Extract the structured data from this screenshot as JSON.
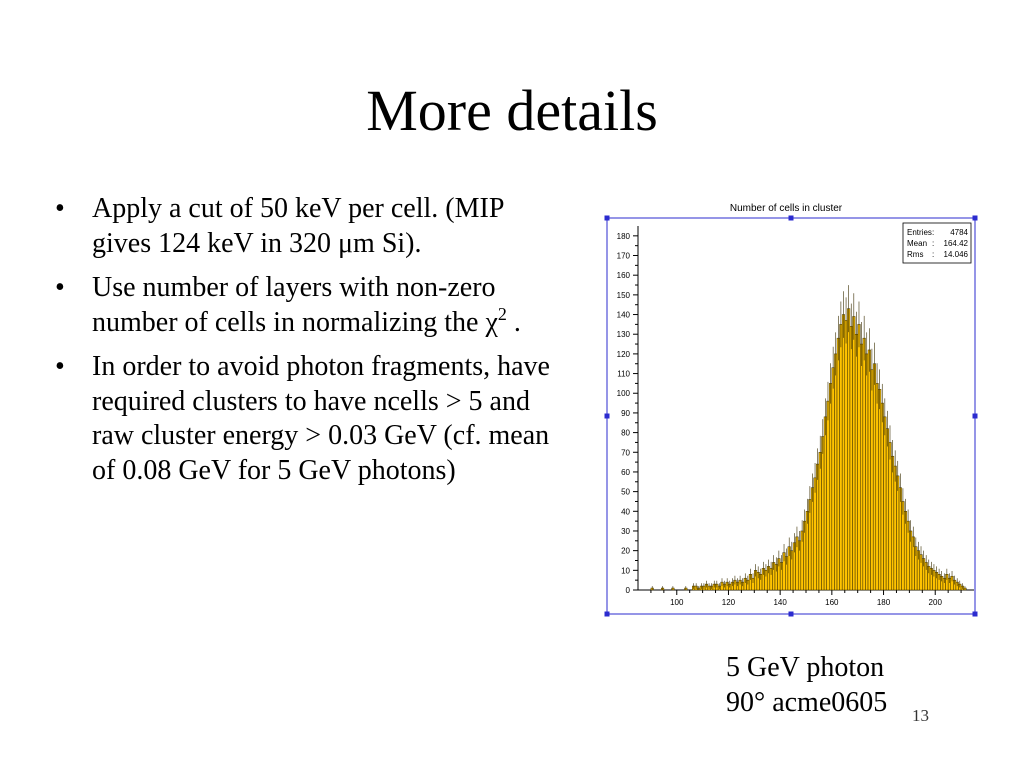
{
  "slide": {
    "title": "More details",
    "bullets": [
      {
        "text": "Apply a cut of 50 keV per cell. (MIP gives 124 keV in 320 μm Si)."
      },
      {
        "text": "Use number of layers with non-zero number of cells in normalizing the χ",
        "sup": "2",
        "after": " ."
      },
      {
        "text": "In order to avoid photon fragments, have required clusters to have ncells > 5 and raw cluster energy > 0.03 GeV (cf. mean of 0.08 GeV for 5 GeV photons)"
      }
    ],
    "bullet_glyph": "•",
    "caption": [
      "5 GeV photon",
      "90° acme0605"
    ],
    "page_number": "13"
  },
  "colors": {
    "fill": "#FFC300",
    "outline": "#3a2e00",
    "frame_handles": "#2b2bcf",
    "axis": "#000000"
  },
  "chart_data": {
    "type": "histogram",
    "title": "Number of cells in cluster",
    "xlabel": "",
    "ylabel": "",
    "xlim": [
      85,
      215
    ],
    "ylim": [
      0,
      185
    ],
    "x_ticks": [
      100,
      120,
      140,
      160,
      180,
      200
    ],
    "y_ticks": [
      0,
      10,
      20,
      30,
      40,
      50,
      60,
      70,
      80,
      90,
      100,
      110,
      120,
      130,
      140,
      150,
      160,
      170,
      180
    ],
    "stats_box": [
      {
        "label": "Entries",
        "value": "4784"
      },
      {
        "label": "Mean",
        "value": "164.42"
      },
      {
        "label": "Rms",
        "value": "14.046"
      }
    ],
    "bin_width": 1,
    "bins": [
      [
        90,
        1
      ],
      [
        94,
        1
      ],
      [
        98,
        1
      ],
      [
        103,
        1
      ],
      [
        106,
        2
      ],
      [
        107,
        2
      ],
      [
        108,
        1
      ],
      [
        109,
        2
      ],
      [
        110,
        2
      ],
      [
        111,
        3
      ],
      [
        112,
        2
      ],
      [
        113,
        2
      ],
      [
        114,
        3
      ],
      [
        115,
        3
      ],
      [
        116,
        2
      ],
      [
        117,
        4
      ],
      [
        118,
        3
      ],
      [
        119,
        4
      ],
      [
        120,
        3
      ],
      [
        121,
        4
      ],
      [
        122,
        5
      ],
      [
        123,
        4
      ],
      [
        124,
        5
      ],
      [
        125,
        4
      ],
      [
        126,
        6
      ],
      [
        127,
        5
      ],
      [
        128,
        8
      ],
      [
        129,
        6
      ],
      [
        130,
        10
      ],
      [
        131,
        9
      ],
      [
        132,
        8
      ],
      [
        133,
        11
      ],
      [
        134,
        10
      ],
      [
        135,
        12
      ],
      [
        136,
        11
      ],
      [
        137,
        14
      ],
      [
        138,
        13
      ],
      [
        139,
        16
      ],
      [
        140,
        14
      ],
      [
        141,
        19
      ],
      [
        142,
        17
      ],
      [
        143,
        22
      ],
      [
        144,
        20
      ],
      [
        145,
        24
      ],
      [
        146,
        27
      ],
      [
        147,
        25
      ],
      [
        148,
        30
      ],
      [
        149,
        35
      ],
      [
        150,
        40
      ],
      [
        151,
        46
      ],
      [
        152,
        52
      ],
      [
        153,
        57
      ],
      [
        154,
        64
      ],
      [
        155,
        70
      ],
      [
        156,
        78
      ],
      [
        157,
        88
      ],
      [
        158,
        96
      ],
      [
        159,
        105
      ],
      [
        160,
        113
      ],
      [
        161,
        120
      ],
      [
        162,
        128
      ],
      [
        163,
        135
      ],
      [
        164,
        140
      ],
      [
        165,
        137
      ],
      [
        166,
        143
      ],
      [
        167,
        134
      ],
      [
        168,
        139
      ],
      [
        169,
        130
      ],
      [
        170,
        135
      ],
      [
        171,
        125
      ],
      [
        172,
        128
      ],
      [
        173,
        120
      ],
      [
        174,
        122
      ],
      [
        175,
        112
      ],
      [
        176,
        115
      ],
      [
        177,
        105
      ],
      [
        178,
        102
      ],
      [
        179,
        95
      ],
      [
        180,
        88
      ],
      [
        181,
        82
      ],
      [
        182,
        75
      ],
      [
        183,
        68
      ],
      [
        184,
        63
      ],
      [
        185,
        58
      ],
      [
        186,
        52
      ],
      [
        187,
        45
      ],
      [
        188,
        40
      ],
      [
        189,
        35
      ],
      [
        190,
        30
      ],
      [
        191,
        27
      ],
      [
        192,
        22
      ],
      [
        193,
        20
      ],
      [
        194,
        18
      ],
      [
        195,
        16
      ],
      [
        196,
        14
      ],
      [
        197,
        12
      ],
      [
        198,
        11
      ],
      [
        199,
        10
      ],
      [
        200,
        9
      ],
      [
        201,
        8
      ],
      [
        202,
        7
      ],
      [
        203,
        6
      ],
      [
        204,
        8
      ],
      [
        205,
        6
      ],
      [
        206,
        7
      ],
      [
        207,
        5
      ],
      [
        208,
        4
      ],
      [
        209,
        3
      ],
      [
        210,
        2
      ],
      [
        211,
        1
      ]
    ]
  }
}
